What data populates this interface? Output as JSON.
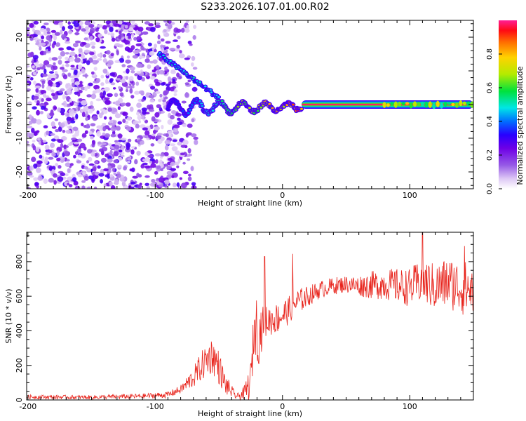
{
  "title": "S233.2026.107.01.00.R02",
  "colors": {
    "signal": "#e8251d",
    "frame": "#000000",
    "background": "#ffffff"
  },
  "chart_data": [
    {
      "type": "heatmap",
      "xlabel": "Height of straight line (km)",
      "ylabel": "Frequency (Hz)",
      "xlim": [
        -201,
        150
      ],
      "ylim": [
        -25,
        25
      ],
      "xticks": [
        -200,
        -100,
        0,
        100
      ],
      "yticks": [
        -20,
        -10,
        0,
        10,
        20
      ],
      "colorbar": {
        "label": "Normalized spectral amplitude",
        "range": [
          0.0,
          1.0
        ],
        "ticks": [
          0.0,
          0.2,
          0.4,
          0.6,
          0.8
        ],
        "tick_labels": [
          "0.0",
          "0.2",
          "0.4",
          "0.6",
          "0.8"
        ],
        "colormap": "rainbow (white-violet-blue-cyan-green-yellow-orange-red-magenta)"
      },
      "features": [
        {
          "description": "diffuse low-amplitude noise",
          "x_range": [
            -201,
            -85
          ],
          "freq_range": [
            -25,
            25
          ],
          "amplitude_range": [
            0.05,
            0.3
          ]
        },
        {
          "description": "chirp band descending to 0 Hz",
          "x_range": [
            -97,
            -50
          ],
          "freq_start": 15,
          "freq_end": 2,
          "amplitude": 0.45
        },
        {
          "description": "oscillating band near 0 Hz",
          "x_range": [
            -90,
            15
          ],
          "freq_range": [
            -4,
            3
          ],
          "amplitude_range": [
            0.2,
            0.9
          ]
        },
        {
          "description": "steady 0 Hz carrier",
          "x_range": [
            15,
            150
          ],
          "freq": 0,
          "amplitude": 0.98
        }
      ]
    },
    {
      "type": "line",
      "xlabel": "Height of straight line (km)",
      "ylabel": "SNR (10 * v/v)",
      "xlim": [
        -201,
        150
      ],
      "ylim": [
        0,
        970
      ],
      "xticks": [
        -200,
        -100,
        0,
        100
      ],
      "yticks": [
        0,
        200,
        400,
        600,
        800
      ],
      "series": [
        {
          "name": "SNR",
          "color": "#e8251d",
          "x": [
            -200,
            -150,
            -110,
            -90,
            -80,
            -70,
            -60,
            -55,
            -50,
            -45,
            -40,
            -38,
            -35,
            -30,
            -25,
            -22,
            -20,
            -18,
            -15,
            -10,
            -5,
            0,
            5,
            10,
            20,
            30,
            40,
            50,
            60,
            70,
            80,
            90,
            100,
            110,
            120,
            130,
            140,
            150
          ],
          "values": [
            18,
            15,
            22,
            30,
            60,
            130,
            230,
            260,
            190,
            90,
            50,
            30,
            20,
            40,
            100,
            430,
            420,
            380,
            450,
            460,
            470,
            490,
            520,
            560,
            600,
            640,
            660,
            670,
            660,
            665,
            670,
            660,
            650,
            690,
            650,
            680,
            650,
            640
          ],
          "noise_amplitude": [
            12,
            12,
            15,
            18,
            25,
            60,
            100,
            110,
            100,
            60,
            40,
            25,
            20,
            40,
            120,
            150,
            200,
            180,
            90,
            90,
            90,
            90,
            80,
            80,
            60,
            50,
            50,
            50,
            60,
            80,
            90,
            100,
            110,
            130,
            140,
            150,
            160,
            160
          ],
          "peaks": [
            {
              "x": -14,
              "value": 830
            },
            {
              "x": 8,
              "value": 845
            },
            {
              "x": 110,
              "value": 970
            },
            {
              "x": 143,
              "value": 890
            }
          ]
        }
      ]
    }
  ]
}
